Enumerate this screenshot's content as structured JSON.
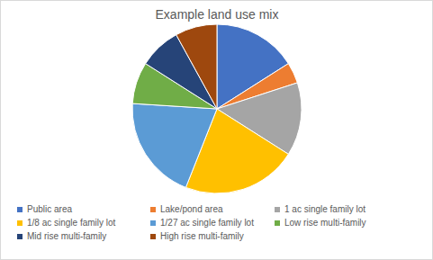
{
  "chart_data": {
    "type": "pie",
    "title": "Example land use mix",
    "categories": [
      "Public area",
      "Lake/pond area",
      "1 ac single family lot",
      "1/8 ac single family lot",
      "1/27 ac single family lot",
      "Low rise multi-family",
      "Mid rise multi-family",
      "High rise multi-family"
    ],
    "values": [
      16,
      4,
      14,
      22,
      20,
      8,
      8,
      8
    ],
    "colors": [
      "#4472c4",
      "#ed7d31",
      "#a5a5a5",
      "#ffc000",
      "#5b9bd5",
      "#70ad47",
      "#264478",
      "#9e480e"
    ],
    "legend": "bottom"
  }
}
